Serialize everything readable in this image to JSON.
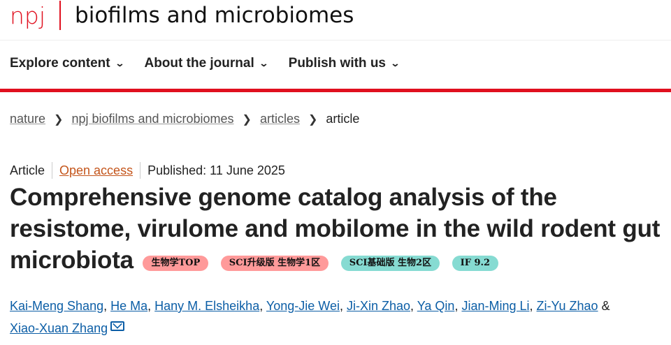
{
  "header": {
    "brand": "npj",
    "journal": "biofilms and microbiomes"
  },
  "nav": [
    {
      "label": "Explore content"
    },
    {
      "label": "About the journal"
    },
    {
      "label": "Publish with us"
    }
  ],
  "breadcrumb": [
    {
      "label": "nature"
    },
    {
      "label": "npj biofilms and microbiomes"
    },
    {
      "label": "articles"
    },
    {
      "label": "article"
    }
  ],
  "meta": {
    "type": "Article",
    "access": "Open access",
    "published": "Published: 11 June 2025"
  },
  "title": "Comprehensive genome catalog analysis of the resistome, virulome and mobilome in the wild rodent gut microbiota",
  "badges": [
    {
      "label": "生物学TOP",
      "color": "#ff9a9a"
    },
    {
      "label": "SCI升级版 生物学1区",
      "color": "#ff9a9a"
    },
    {
      "label": "SCI基础版 生物2区",
      "color": "#86dbd2"
    },
    {
      "label": "IF 9.2",
      "color": "#86dbd2"
    }
  ],
  "authors": [
    "Kai-Meng Shang",
    "He Ma",
    "Hany M. Elsheikha",
    "Yong-Jie Wei",
    "Ji-Xin Zhao",
    "Ya Qin",
    "Jian-Ming Li",
    "Zi-Yu Zhao",
    "Xiao-Xuan Zhang"
  ],
  "authors_and": "&",
  "colors": {
    "brand_red": "#e0101f",
    "link_blue": "#0c5ea6",
    "open_access": "#c4551b"
  }
}
